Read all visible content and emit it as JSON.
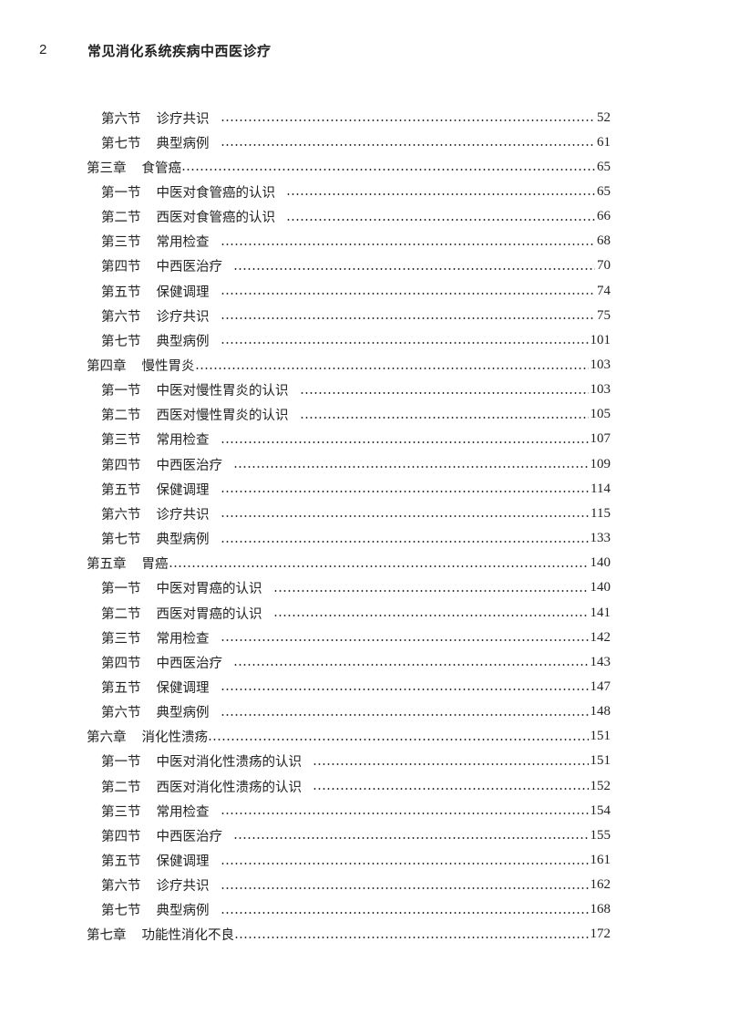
{
  "header": {
    "page_number": "2",
    "book_title": "常见消化系统疾病中西医诊疗"
  },
  "toc": [
    {
      "level": "section",
      "label": "第六节",
      "title": "诊疗共识",
      "page": "52"
    },
    {
      "level": "section",
      "label": "第七节",
      "title": "典型病例",
      "page": "61"
    },
    {
      "level": "chapter",
      "label": "第三章",
      "title": "食管癌",
      "page": "65"
    },
    {
      "level": "section",
      "label": "第一节",
      "title": "中医对食管癌的认识",
      "page": "65"
    },
    {
      "level": "section",
      "label": "第二节",
      "title": "西医对食管癌的认识",
      "page": "66"
    },
    {
      "level": "section",
      "label": "第三节",
      "title": "常用检查",
      "page": "68"
    },
    {
      "level": "section",
      "label": "第四节",
      "title": "中西医治疗",
      "page": "70"
    },
    {
      "level": "section",
      "label": "第五节",
      "title": "保健调理",
      "page": "74"
    },
    {
      "level": "section",
      "label": "第六节",
      "title": "诊疗共识",
      "page": "75"
    },
    {
      "level": "section",
      "label": "第七节",
      "title": "典型病例",
      "page": "101"
    },
    {
      "level": "chapter",
      "label": "第四章",
      "title": "慢性胃炎",
      "page": "103"
    },
    {
      "level": "section",
      "label": "第一节",
      "title": "中医对慢性胃炎的认识",
      "page": "103"
    },
    {
      "level": "section",
      "label": "第二节",
      "title": "西医对慢性胃炎的认识",
      "page": "105"
    },
    {
      "level": "section",
      "label": "第三节",
      "title": "常用检查",
      "page": "107"
    },
    {
      "level": "section",
      "label": "第四节",
      "title": "中西医治疗",
      "page": "109"
    },
    {
      "level": "section",
      "label": "第五节",
      "title": "保健调理",
      "page": "114"
    },
    {
      "level": "section",
      "label": "第六节",
      "title": "诊疗共识",
      "page": "115"
    },
    {
      "level": "section",
      "label": "第七节",
      "title": "典型病例",
      "page": "133"
    },
    {
      "level": "chapter",
      "label": "第五章",
      "title": "胃癌",
      "page": "140"
    },
    {
      "level": "section",
      "label": "第一节",
      "title": "中医对胃癌的认识",
      "page": "140"
    },
    {
      "level": "section",
      "label": "第二节",
      "title": "西医对胃癌的认识",
      "page": "141"
    },
    {
      "level": "section",
      "label": "第三节",
      "title": "常用检查",
      "page": "142"
    },
    {
      "level": "section",
      "label": "第四节",
      "title": "中西医治疗",
      "page": "143"
    },
    {
      "level": "section",
      "label": "第五节",
      "title": "保健调理",
      "page": "147"
    },
    {
      "level": "section",
      "label": "第六节",
      "title": "典型病例",
      "page": "148"
    },
    {
      "level": "chapter",
      "label": "第六章",
      "title": "消化性溃疡",
      "page": "151"
    },
    {
      "level": "section",
      "label": "第一节",
      "title": "中医对消化性溃疡的认识",
      "page": "151"
    },
    {
      "level": "section",
      "label": "第二节",
      "title": "西医对消化性溃疡的认识",
      "page": "152"
    },
    {
      "level": "section",
      "label": "第三节",
      "title": "常用检查",
      "page": "154"
    },
    {
      "level": "section",
      "label": "第四节",
      "title": "中西医治疗",
      "page": "155"
    },
    {
      "level": "section",
      "label": "第五节",
      "title": "保健调理",
      "page": "161"
    },
    {
      "level": "section",
      "label": "第六节",
      "title": "诊疗共识",
      "page": "162"
    },
    {
      "level": "section",
      "label": "第七节",
      "title": "典型病例",
      "page": "168"
    },
    {
      "level": "chapter",
      "label": "第七章",
      "title": "功能性消化不良",
      "page": "172"
    }
  ]
}
